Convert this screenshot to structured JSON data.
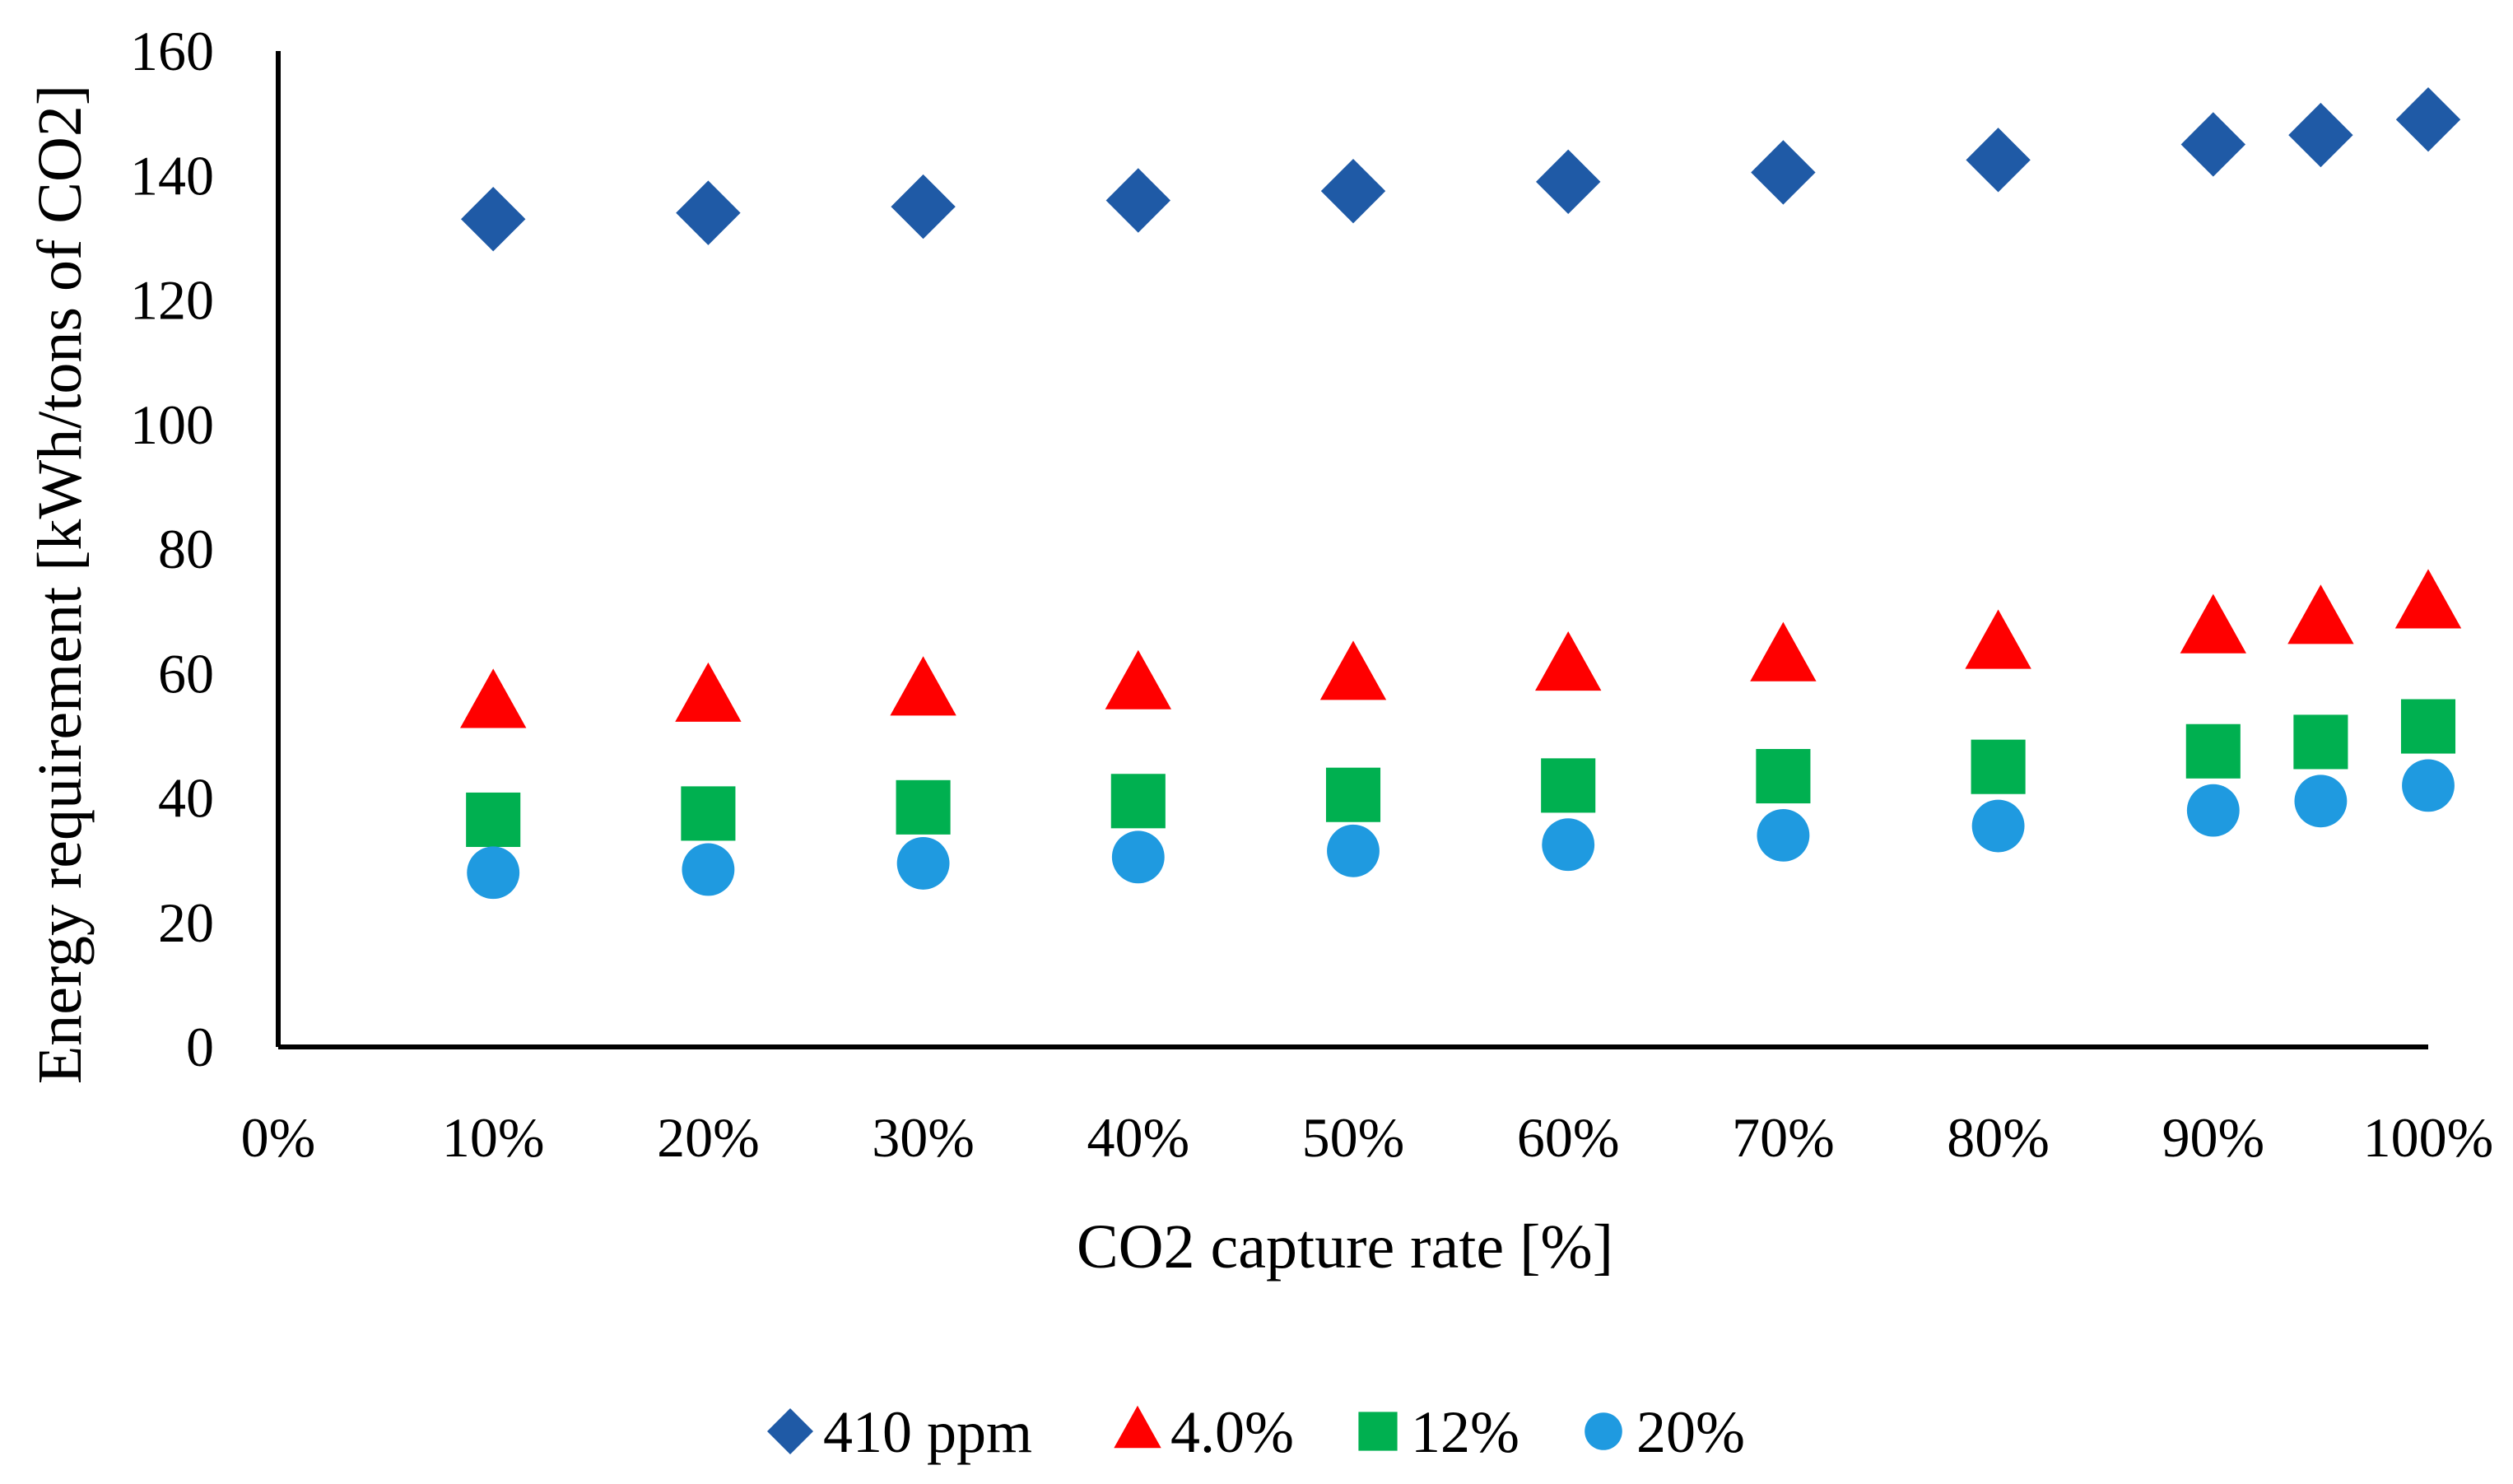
{
  "chart_data": {
    "type": "scatter",
    "title": "",
    "xlabel": "CO2 capture rate [%]",
    "ylabel": "Energy requirement [kWh/tons of CO2]",
    "xlim": [
      0,
      100
    ],
    "ylim": [
      0,
      160
    ],
    "x_ticks": [
      0,
      10,
      20,
      30,
      40,
      50,
      60,
      70,
      80,
      90,
      100
    ],
    "x_tick_labels": [
      "0%",
      "10%",
      "20%",
      "30%",
      "40%",
      "50%",
      "60%",
      "70%",
      "80%",
      "90%",
      "100%"
    ],
    "y_ticks": [
      0,
      20,
      40,
      60,
      80,
      100,
      120,
      140,
      160
    ],
    "y_tick_labels": [
      "0",
      "20",
      "40",
      "60",
      "80",
      "100",
      "120",
      "140",
      "160"
    ],
    "grid": false,
    "legend_position": "bottom-center",
    "x": [
      10,
      20,
      30,
      40,
      50,
      60,
      70,
      80,
      90,
      95,
      100
    ],
    "series": [
      {
        "name": "410 ppm",
        "marker": "diamond",
        "color": "#1f5aa6",
        "values": [
          133,
          134,
          135,
          136,
          137.5,
          139,
          140.5,
          142.5,
          145,
          146.5,
          149
        ]
      },
      {
        "name": "4.0%",
        "marker": "triangle",
        "color": "#ff0000",
        "values": [
          55,
          56,
          57,
          58,
          59.5,
          61,
          62.5,
          64.5,
          67,
          68.5,
          71
        ]
      },
      {
        "name": "12%",
        "marker": "square",
        "color": "#00b050",
        "values": [
          36.5,
          37.5,
          38.5,
          39.5,
          40.5,
          42,
          43.5,
          45,
          47.5,
          49,
          51.5
        ]
      },
      {
        "name": "20%",
        "marker": "circle",
        "color": "#1f9ae0",
        "values": [
          28,
          28.5,
          29.5,
          30.5,
          31.5,
          32.5,
          34,
          35.5,
          38,
          39.5,
          42
        ]
      }
    ]
  }
}
